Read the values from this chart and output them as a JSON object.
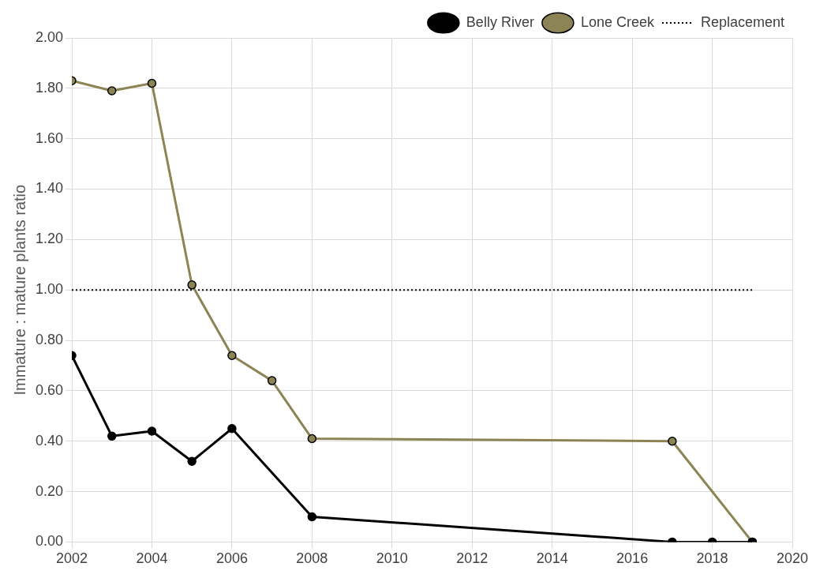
{
  "chart_data": {
    "type": "line",
    "ylabel": "Immature : mature plants ratio",
    "xlim": [
      2002,
      2020
    ],
    "xticks": [
      2002,
      2004,
      2006,
      2008,
      2010,
      2012,
      2014,
      2016,
      2018,
      2020
    ],
    "ylim": [
      0,
      2
    ],
    "yticks": [
      {
        "value": 0,
        "label": "0.00"
      },
      {
        "value": 0.2,
        "label": "0.20"
      },
      {
        "value": 0.4,
        "label": "0.40"
      },
      {
        "value": 0.6,
        "label": "0.60"
      },
      {
        "value": 0.8,
        "label": "0.80"
      },
      {
        "value": 1,
        "label": "1.00"
      },
      {
        "value": 1.2,
        "label": "1.20"
      },
      {
        "value": 1.4,
        "label": "1.40"
      },
      {
        "value": 1.6,
        "label": "1.60"
      },
      {
        "value": 1.8,
        "label": "1.80"
      },
      {
        "value": 2,
        "label": "2.00"
      }
    ],
    "grid": true,
    "legend": "top right",
    "series": [
      {
        "name": "Belly River",
        "color": "#000000",
        "marker": "circle",
        "line_style": "solid",
        "x": [
          2002,
          2003,
          2004,
          2005,
          2006,
          2008,
          2017,
          2018,
          2019
        ],
        "values": [
          0.74,
          0.42,
          0.44,
          0.32,
          0.45,
          0.1,
          0,
          0,
          0
        ]
      },
      {
        "name": "Lone Creek",
        "color": "#8c8455",
        "marker": "circle",
        "line_style": "solid",
        "x": [
          2002,
          2003,
          2004,
          2005,
          2006,
          2007,
          2008,
          2017,
          2019
        ],
        "values": [
          1.83,
          1.79,
          1.82,
          1.02,
          0.74,
          0.64,
          0.41,
          0.4,
          0
        ]
      },
      {
        "name": "Replacement",
        "color": "#000000",
        "marker": "none",
        "line_style": "dotted",
        "x": [
          2002,
          2019
        ],
        "values": [
          1,
          1
        ]
      }
    ]
  }
}
